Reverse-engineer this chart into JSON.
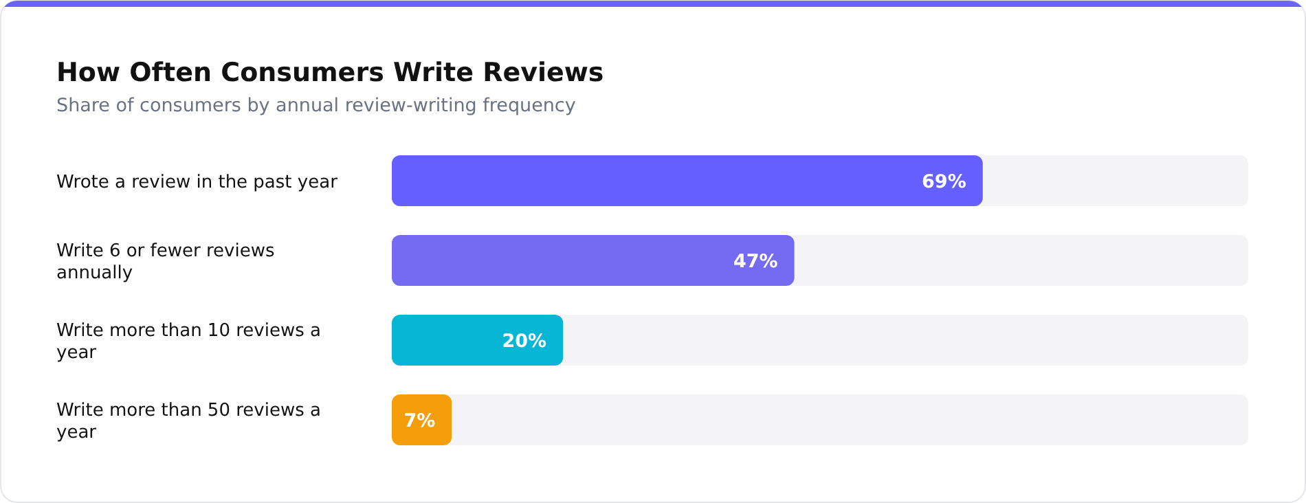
{
  "chart_data": {
    "type": "bar",
    "orientation": "horizontal",
    "title": "How Often Consumers Write Reviews",
    "subtitle": "Share of consumers by annual review-writing frequency",
    "categories": [
      "Wrote a review in the past year",
      "Write 6 or fewer reviews annually",
      "Write more than 10 reviews a year",
      "Write more than 50 reviews a year"
    ],
    "values": [
      69,
      47,
      20,
      7
    ],
    "colors": [
      "#665fff",
      "#756bf2",
      "#06b6d4",
      "#f59e0b"
    ],
    "value_labels": [
      "69%",
      "47%",
      "20%",
      "7%"
    ],
    "xlim": [
      0,
      100
    ]
  }
}
